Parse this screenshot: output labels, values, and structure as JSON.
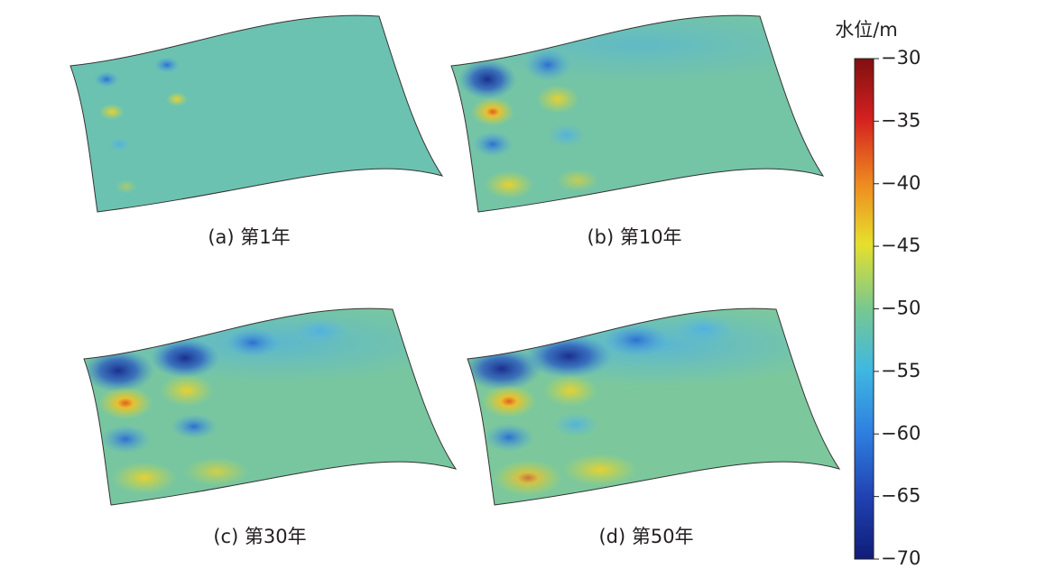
{
  "panels": [
    {
      "caption": "(a) 第1年"
    },
    {
      "caption": "(b) 第10年"
    },
    {
      "caption": "(c) 第30年"
    },
    {
      "caption": "(d) 第50年"
    }
  ],
  "colorbar": {
    "title": "水位/m",
    "lim": [
      -70,
      -30
    ],
    "ticks": [
      {
        "value": -30,
        "label": "−30"
      },
      {
        "value": -35,
        "label": "−35"
      },
      {
        "value": -40,
        "label": "−40"
      },
      {
        "value": -45,
        "label": "−45"
      },
      {
        "value": -50,
        "label": "−50"
      },
      {
        "value": -55,
        "label": "−55"
      },
      {
        "value": -60,
        "label": "−60"
      },
      {
        "value": -65,
        "label": "−65"
      },
      {
        "value": -70,
        "label": "−70"
      }
    ]
  }
}
